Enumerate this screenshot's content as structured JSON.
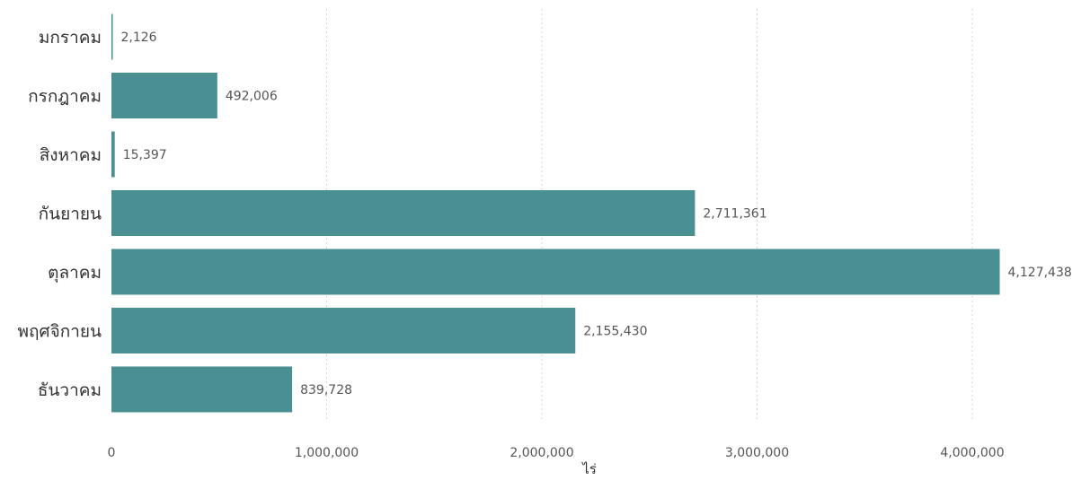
{
  "chart_data": {
    "type": "bar",
    "orientation": "horizontal",
    "categories": [
      "มกราคม",
      "กรกฎาคม",
      "สิงหาคม",
      "กันยายน",
      "ตุลาคม",
      "พฤศจิกายน",
      "ธันวาคม"
    ],
    "values": [
      2126,
      492006,
      15397,
      2711361,
      4127438,
      2155430,
      839728
    ],
    "data_labels": [
      "2,126",
      "492,006",
      "15,397",
      "2,711,361",
      "4,127,438",
      "2,155,430",
      "839,728"
    ],
    "xlabel": "ไร่",
    "ylabel": "",
    "xlim": [
      0,
      4300000
    ],
    "x_ticks": [
      0,
      1000000,
      2000000,
      3000000,
      4000000
    ],
    "x_tick_labels": [
      "0",
      "1,000,000",
      "2,000,000",
      "3,000,000",
      "4,000,000"
    ],
    "grid": true,
    "bar_color": "#4a8f92"
  }
}
